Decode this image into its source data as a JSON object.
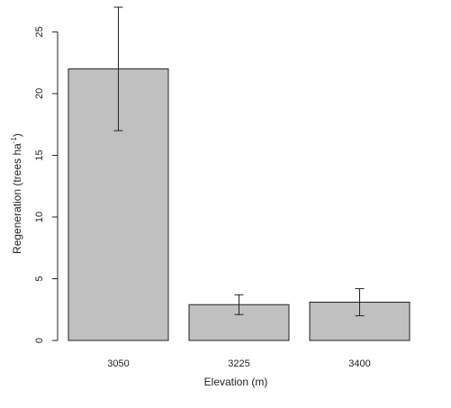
{
  "chart_data": {
    "type": "bar",
    "categories": [
      "3050",
      "3225",
      "3400"
    ],
    "values": [
      22.0,
      2.9,
      3.1
    ],
    "error_bars": {
      "lower": [
        17.0,
        2.1,
        2.0
      ],
      "upper": [
        27.0,
        3.7,
        4.2
      ]
    },
    "title": "",
    "xlabel": "Elevation (m)",
    "ylabel": "Regeneration (trees ha",
    "ylabel_superscript": "-1",
    "ylabel_suffix": ")",
    "ylim": [
      0,
      27
    ],
    "yticks": [
      0,
      5,
      10,
      15,
      20,
      25
    ],
    "grid": false,
    "legend": "none",
    "colors": {
      "bar_fill": "#c0c0c0",
      "bar_stroke": "#222222",
      "axis": "#222222",
      "text": "#222222"
    }
  }
}
